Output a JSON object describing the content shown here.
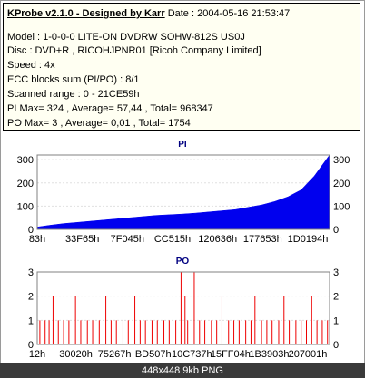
{
  "header": {
    "app_title": "KProbe v2.1.0 - Designed by Karr",
    "date": "Date : 2004-05-16 21:53:47",
    "model": "Model : 1-0-0-0 LITE-ON DVDRW SOHW-812S  US0J",
    "disc": "Disc : DVD+R , RICOHJPNR01 [Ricoh Company Limited]",
    "speed": "Speed : 4x",
    "ecc": "ECC blocks sum (PI/PO) : 8/1",
    "scanned_range": "Scanned range : 0 - 21CE59h",
    "pi_stats": "PI Max= 324 , Average= 57,44 , Total= 968347",
    "po_stats": "PO Max= 3 , Average= 0,01 , Total= 1754"
  },
  "footer": {
    "caption": "448x448 9kb PNG"
  },
  "colors": {
    "pi_fill": "#0000ee",
    "po_fill": "#ee0000",
    "title_color": "#000080",
    "plot_bg": "#ffffff",
    "grid": "#e0e0e0"
  },
  "chart_data": [
    {
      "type": "area",
      "title": "PI",
      "x_ticks": [
        "83h",
        "33F65h",
        "7F045h",
        "CC515h",
        "120636h",
        "177653h",
        "1D0194h"
      ],
      "y_ticks": [
        0,
        100,
        200,
        300
      ],
      "ylim": [
        0,
        320
      ],
      "grid": true,
      "x_range": [
        0,
        2215513
      ],
      "series": [
        {
          "x": [
            0,
            100000,
            200000,
            300000,
            400000,
            500000,
            600000,
            700000,
            800000,
            900000,
            1000000,
            1100000,
            1200000,
            1300000,
            1400000,
            1500000,
            1600000,
            1700000,
            1800000,
            1900000,
            2000000,
            2100000,
            2215513
          ],
          "values": [
            10,
            18,
            25,
            30,
            35,
            40,
            45,
            50,
            55,
            60,
            63,
            66,
            70,
            75,
            80,
            85,
            95,
            105,
            120,
            140,
            170,
            230,
            320
          ]
        }
      ]
    },
    {
      "type": "bar",
      "title": "PO",
      "x_ticks": [
        "12h",
        "30020h",
        "75267h",
        "BD507h",
        "10C737h",
        "15FF04h",
        "1B3903h",
        "207001h"
      ],
      "y_ticks": [
        0,
        1,
        2,
        3
      ],
      "ylim": [
        0,
        3
      ],
      "grid": true,
      "x_range": [
        0,
        2215513
      ],
      "notes_from_image": "Many spikes of value 1 across the range, with occasional 2 and 3 spikes",
      "spikes": [
        {
          "x": 20000,
          "value": 1
        },
        {
          "x": 60000,
          "value": 1
        },
        {
          "x": 90000,
          "value": 1
        },
        {
          "x": 120000,
          "value": 2
        },
        {
          "x": 160000,
          "value": 1
        },
        {
          "x": 200000,
          "value": 1
        },
        {
          "x": 240000,
          "value": 1
        },
        {
          "x": 290000,
          "value": 2
        },
        {
          "x": 330000,
          "value": 1
        },
        {
          "x": 380000,
          "value": 1
        },
        {
          "x": 420000,
          "value": 1
        },
        {
          "x": 470000,
          "value": 1
        },
        {
          "x": 520000,
          "value": 2
        },
        {
          "x": 560000,
          "value": 1
        },
        {
          "x": 600000,
          "value": 1
        },
        {
          "x": 650000,
          "value": 1
        },
        {
          "x": 690000,
          "value": 1
        },
        {
          "x": 740000,
          "value": 2
        },
        {
          "x": 780000,
          "value": 1
        },
        {
          "x": 820000,
          "value": 1
        },
        {
          "x": 870000,
          "value": 1
        },
        {
          "x": 910000,
          "value": 1
        },
        {
          "x": 960000,
          "value": 1
        },
        {
          "x": 1000000,
          "value": 1
        },
        {
          "x": 1050000,
          "value": 1
        },
        {
          "x": 1090000,
          "value": 3
        },
        {
          "x": 1120000,
          "value": 2
        },
        {
          "x": 1140000,
          "value": 1
        },
        {
          "x": 1190000,
          "value": 3
        },
        {
          "x": 1230000,
          "value": 1
        },
        {
          "x": 1270000,
          "value": 1
        },
        {
          "x": 1320000,
          "value": 1
        },
        {
          "x": 1360000,
          "value": 1
        },
        {
          "x": 1400000,
          "value": 2
        },
        {
          "x": 1450000,
          "value": 1
        },
        {
          "x": 1490000,
          "value": 1
        },
        {
          "x": 1530000,
          "value": 1
        },
        {
          "x": 1580000,
          "value": 1
        },
        {
          "x": 1620000,
          "value": 1
        },
        {
          "x": 1650000,
          "value": 2
        },
        {
          "x": 1700000,
          "value": 1
        },
        {
          "x": 1740000,
          "value": 1
        },
        {
          "x": 1780000,
          "value": 1
        },
        {
          "x": 1830000,
          "value": 1
        },
        {
          "x": 1870000,
          "value": 2
        },
        {
          "x": 1910000,
          "value": 1
        },
        {
          "x": 1960000,
          "value": 1
        },
        {
          "x": 2000000,
          "value": 1
        },
        {
          "x": 2040000,
          "value": 1
        },
        {
          "x": 2080000,
          "value": 2
        },
        {
          "x": 2120000,
          "value": 1
        },
        {
          "x": 2160000,
          "value": 1
        },
        {
          "x": 2200000,
          "value": 1
        }
      ]
    }
  ]
}
